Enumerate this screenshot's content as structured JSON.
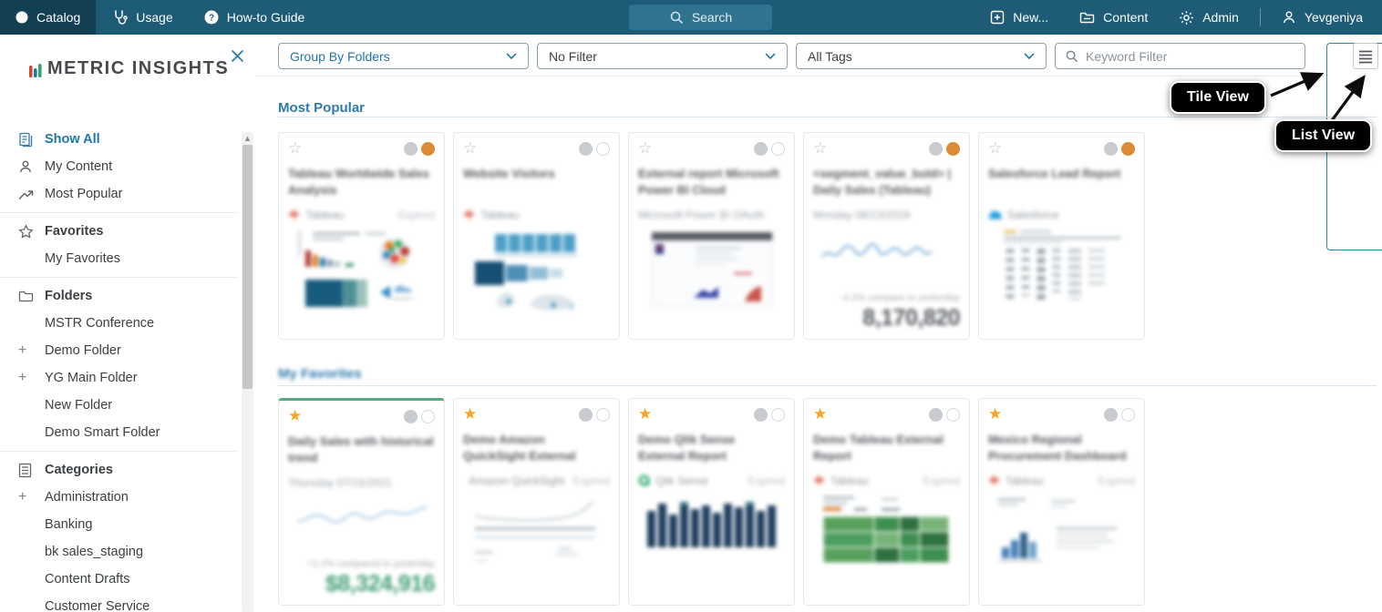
{
  "navbar": {
    "items_left": [
      {
        "label": "Catalog",
        "icon": "catalog-icon",
        "active": true
      },
      {
        "label": "Usage",
        "icon": "stethoscope-icon"
      },
      {
        "label": "How-to Guide",
        "icon": "question-icon"
      }
    ],
    "search_label": "Search",
    "items_right": [
      {
        "label": "New...",
        "icon": "plus-square-icon"
      },
      {
        "label": "Content",
        "icon": "content-folder-icon"
      },
      {
        "label": "Admin",
        "icon": "gear-icon"
      },
      {
        "label": "Yevgeniya",
        "icon": "user-icon"
      }
    ]
  },
  "sidebar": {
    "logo_text": "METRIC INSIGHTS",
    "items": [
      {
        "label": "Show All",
        "icon": "documents",
        "active": true
      },
      {
        "label": "My Content",
        "icon": "person"
      },
      {
        "label": "Most Popular",
        "icon": "trend"
      },
      {
        "divider": true
      },
      {
        "label": "Favorites",
        "icon": "star",
        "bold": true
      },
      {
        "label": "My Favorites",
        "indent": true
      },
      {
        "divider": true
      },
      {
        "label": "Folders",
        "icon": "folder",
        "bold": true
      },
      {
        "label": "MSTR Conference",
        "indent": true
      },
      {
        "label": "Demo Folder",
        "expand": true
      },
      {
        "label": "YG Main Folder",
        "expand": true
      },
      {
        "label": "New Folder",
        "indent": true
      },
      {
        "label": "Demo Smart Folder",
        "indent": true
      },
      {
        "divider": true
      },
      {
        "label": "Categories",
        "icon": "list",
        "bold": true
      },
      {
        "label": "Administration",
        "expand": true
      },
      {
        "label": "Banking",
        "indent": true
      },
      {
        "label": "bk sales_staging",
        "indent": true
      },
      {
        "label": "Content Drafts",
        "indent": true
      },
      {
        "label": "Customer Service",
        "indent": true
      }
    ]
  },
  "filters": {
    "group_by": "Group By Folders",
    "filter": "No Filter",
    "tags": "All Tags",
    "keyword_placeholder": "Keyword Filter"
  },
  "view_toggle": {
    "tile_active": true,
    "list_active": false
  },
  "callouts": {
    "tile_view": "Tile View",
    "list_view": "List View"
  },
  "sections": [
    {
      "title": "Most Popular",
      "tiles": [
        {
          "title": "Tableau Worldwide Sales Analysis",
          "star": "outline",
          "circles": [
            "gray",
            "orange"
          ],
          "source": "Tableau",
          "source_icon": "tableau-icon",
          "badge": "Expired",
          "thumb": "dashboard"
        },
        {
          "title": "Website Visitors",
          "star": "outline",
          "circles": [
            "gray",
            "outline"
          ],
          "source": "Tableau",
          "source_icon": "tableau-icon",
          "badge": "",
          "thumb": "bluebars"
        },
        {
          "title": "External report Microsoft Power BI Cloud",
          "star": "outline",
          "circles": [
            "gray",
            "outline"
          ],
          "subtitle": "Microsoft Power BI OAuth",
          "badge": "",
          "thumb": "report"
        },
        {
          "title": "<segment_value_bold> | Daily Sales (Tableau)",
          "star": "outline",
          "circles": [
            "gray",
            "orange"
          ],
          "subtitle": "Monday 08/13/2018",
          "badge": "",
          "thumb": "sparkline",
          "kpi": {
            "note": "-4.2% compare to yesterday",
            "value": "8,170,820",
            "color": "#55595e"
          }
        },
        {
          "title": "Salesforce Lead Report",
          "star": "outline",
          "circles": [
            "gray",
            "orange"
          ],
          "source": "Salesforce",
          "source_icon": "salesforce-icon",
          "badge": "",
          "thumb": "table"
        }
      ]
    },
    {
      "title": "My Favorites",
      "tiles": [
        {
          "title": "Daily Sales with historical trend",
          "star": "filled",
          "circles": [
            "gray",
            "outline"
          ],
          "subtitle": "Thursday 07/15/2021",
          "badge": "",
          "thumb": "sparkline2",
          "accent_top": true,
          "kpi": {
            "note": "+2.2% compared to yesterday",
            "value": "$8,324,916",
            "color": "#3f9e72"
          }
        },
        {
          "title": "Demo Amazon QuickSight External Report",
          "star": "filled",
          "circles": [
            "gray",
            "outline"
          ],
          "source": "Amazon QuickSight",
          "badge": "Expired",
          "thumb": "flatlines"
        },
        {
          "title": "Demo Qlik Sense External Report",
          "star": "filled",
          "circles": [
            "gray",
            "outline"
          ],
          "source": "Qlik Sense",
          "source_icon": "qlik-icon",
          "badge": "Expired",
          "thumb": "navybars"
        },
        {
          "title": "Demo Tableau External Report",
          "star": "filled",
          "circles": [
            "gray",
            "outline"
          ],
          "source": "Tableau",
          "source_icon": "tableau-icon",
          "badge": "Expired",
          "thumb": "greentable"
        },
        {
          "title": "Mexico Regional Procurement Dashboard",
          "star": "filled",
          "circles": [
            "gray",
            "outline"
          ],
          "source": "Tableau",
          "source_icon": "tableau-icon",
          "badge": "Expired",
          "thumb": "minibars"
        }
      ]
    }
  ],
  "colors": {
    "navbar_bg": "#1d5b76",
    "navbar_active_bg": "#133f53",
    "accent_teal": "#1f75a6",
    "heading_blue": "#2e7cad",
    "star_orange": "#f6a623",
    "status_orange": "#dc8a36",
    "kpi_green": "#3f9e72",
    "favorite_accent_green": "#4fae7e"
  }
}
